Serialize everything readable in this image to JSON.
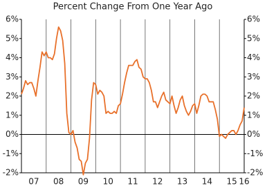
{
  "chart_data": {
    "type": "line",
    "title": "Percent Change From One Year Ago",
    "series": [
      {
        "color": "#e8702a",
        "values": [
          2.1,
          2.4,
          2.8,
          2.6,
          2.7,
          2.7,
          2.4,
          2.0,
          2.8,
          3.5,
          4.3,
          4.1,
          4.3,
          4.0,
          4.0,
          3.9,
          4.2,
          5.0,
          5.6,
          5.4,
          4.9,
          3.7,
          1.1,
          0.1,
          0.0,
          0.2,
          -0.4,
          -0.7,
          -1.3,
          -1.4,
          -2.1,
          -1.5,
          -1.3,
          -0.2,
          1.8,
          2.7,
          2.6,
          2.1,
          2.3,
          2.2,
          2.0,
          1.1,
          1.2,
          1.1,
          1.1,
          1.2,
          1.1,
          1.5,
          1.6,
          2.1,
          2.7,
          3.2,
          3.6,
          3.6,
          3.6,
          3.8,
          3.9,
          3.5,
          3.4,
          3.0,
          2.9,
          2.9,
          2.7,
          2.3,
          1.7,
          1.7,
          1.4,
          1.7,
          2.0,
          2.2,
          1.8,
          1.7,
          1.6,
          2.0,
          1.5,
          1.1,
          1.4,
          1.8,
          2.0,
          1.5,
          1.2,
          1.0,
          1.2,
          1.5,
          1.6,
          1.1,
          1.5,
          2.0,
          2.1,
          2.1,
          2.0,
          1.7,
          1.7,
          1.7,
          1.3,
          0.8,
          -0.1,
          0.0,
          -0.1,
          -0.2,
          0.0,
          0.1,
          0.2,
          0.2,
          0.0,
          0.2,
          0.5,
          0.7,
          1.4
        ]
      }
    ],
    "xlim": [
      0,
      108
    ],
    "xticks": [
      {
        "value": 6,
        "label": "07"
      },
      {
        "value": 18,
        "label": "08"
      },
      {
        "value": 30,
        "label": "09"
      },
      {
        "value": 42,
        "label": "10"
      },
      {
        "value": 54,
        "label": "11"
      },
      {
        "value": 66,
        "label": "12"
      },
      {
        "value": 78,
        "label": "13"
      },
      {
        "value": 90,
        "label": "14"
      },
      {
        "value": 102,
        "label": "15"
      },
      {
        "value": 108,
        "label": "16"
      }
    ],
    "xgrid": [
      12,
      24,
      36,
      48,
      60,
      72,
      84,
      96
    ],
    "ylim": [
      -2,
      6
    ],
    "yticks": [
      {
        "value": -2,
        "label": "-2%"
      },
      {
        "value": -1,
        "label": "-1%"
      },
      {
        "value": 0,
        "label": "0%"
      },
      {
        "value": 1,
        "label": "1%"
      },
      {
        "value": 2,
        "label": "2%"
      },
      {
        "value": 3,
        "label": "3%"
      },
      {
        "value": 4,
        "label": "4%"
      },
      {
        "value": 5,
        "label": "5%"
      },
      {
        "value": 6,
        "label": "6%"
      }
    ]
  }
}
